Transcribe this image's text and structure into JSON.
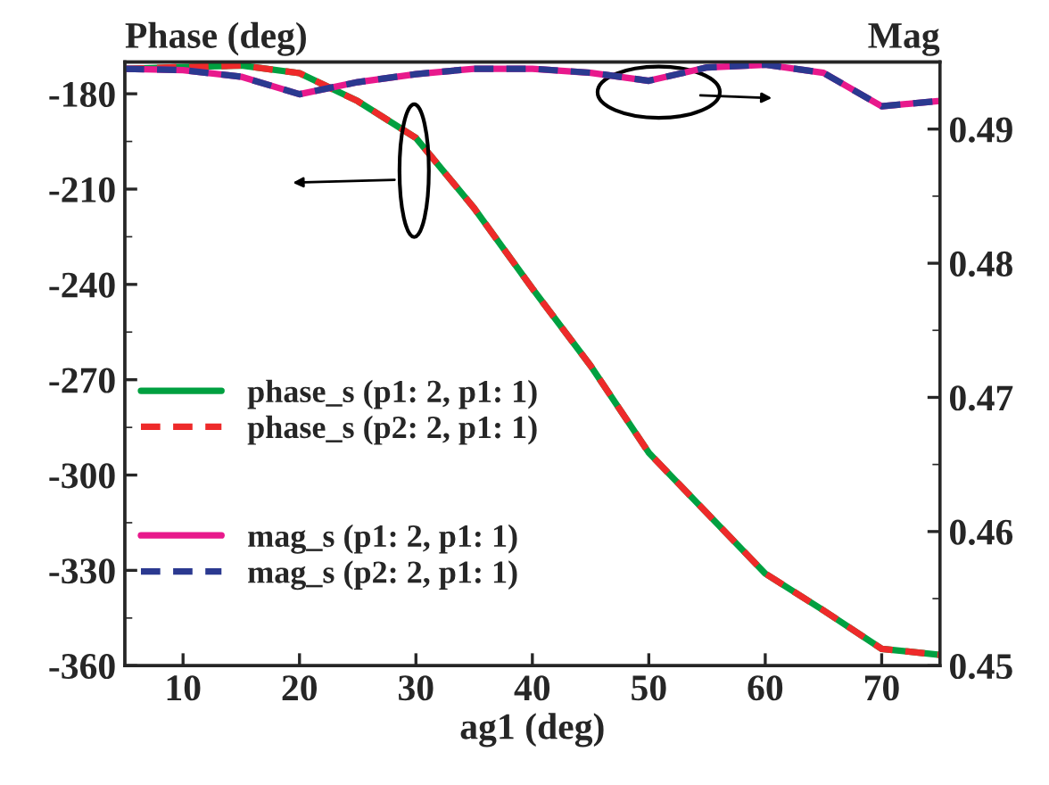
{
  "chart_data": {
    "type": "line",
    "xlabel": "ag1 (deg)",
    "ylabel": "Phase (deg)",
    "y2label": "Mag",
    "x": [
      5,
      10,
      15,
      20,
      25,
      30,
      35,
      40,
      45,
      50,
      55,
      60,
      65,
      70,
      75
    ],
    "series": [
      {
        "name": "phase_s (p1: 2, p1: 1)",
        "color": "#00a040",
        "line_style": "solid",
        "values": [
          -172.2,
          -171.6,
          -171.1,
          -173.5,
          -182.3,
          -193.9,
          -216,
          -241.3,
          -265.6,
          -293,
          -312,
          -331,
          -342.6,
          -354.7,
          -356.6
        ]
      },
      {
        "name": "phase_s (p2: 2, p1: 1)",
        "color": "#ee2a2a",
        "line_style": "dashed",
        "values": [
          -172.2,
          -171.6,
          -171.1,
          -173.5,
          -182.3,
          -193.9,
          -216,
          -241.3,
          -265.6,
          -293,
          -312,
          -331,
          -342.6,
          -354.7,
          -356.6
        ]
      },
      {
        "name": "mag_s (p1: 2, p1: 1)",
        "color": "#e8198c",
        "line_style": "solid",
        "axis": "y2",
        "values": [
          0.4945,
          0.4944,
          0.4939,
          0.4926,
          0.4935,
          0.4941,
          0.4945,
          0.4945,
          0.4942,
          0.4936,
          0.4946,
          0.4948,
          0.4942,
          0.4917,
          0.4921
        ]
      },
      {
        "name": "mag_s (p2: 2, p1: 1)",
        "color": "#2b3990",
        "line_style": "dashed",
        "axis": "y2",
        "values": [
          0.4945,
          0.4944,
          0.4939,
          0.4926,
          0.4935,
          0.4941,
          0.4945,
          0.4945,
          0.4942,
          0.4936,
          0.4946,
          0.4948,
          0.4942,
          0.4917,
          0.4921
        ]
      }
    ],
    "xlim": [
      5,
      75
    ],
    "xticks": [
      10,
      20,
      30,
      40,
      50,
      60,
      70
    ],
    "ylim": [
      -360,
      -170
    ],
    "yticks": [
      -360,
      -330,
      -300,
      -270,
      -240,
      -210,
      -180
    ],
    "y2lim": [
      0.45,
      0.495
    ],
    "y2ticks": [
      0.45,
      0.46,
      0.47,
      0.48,
      0.49
    ],
    "grid": false,
    "legend": "left",
    "marker": "none"
  }
}
